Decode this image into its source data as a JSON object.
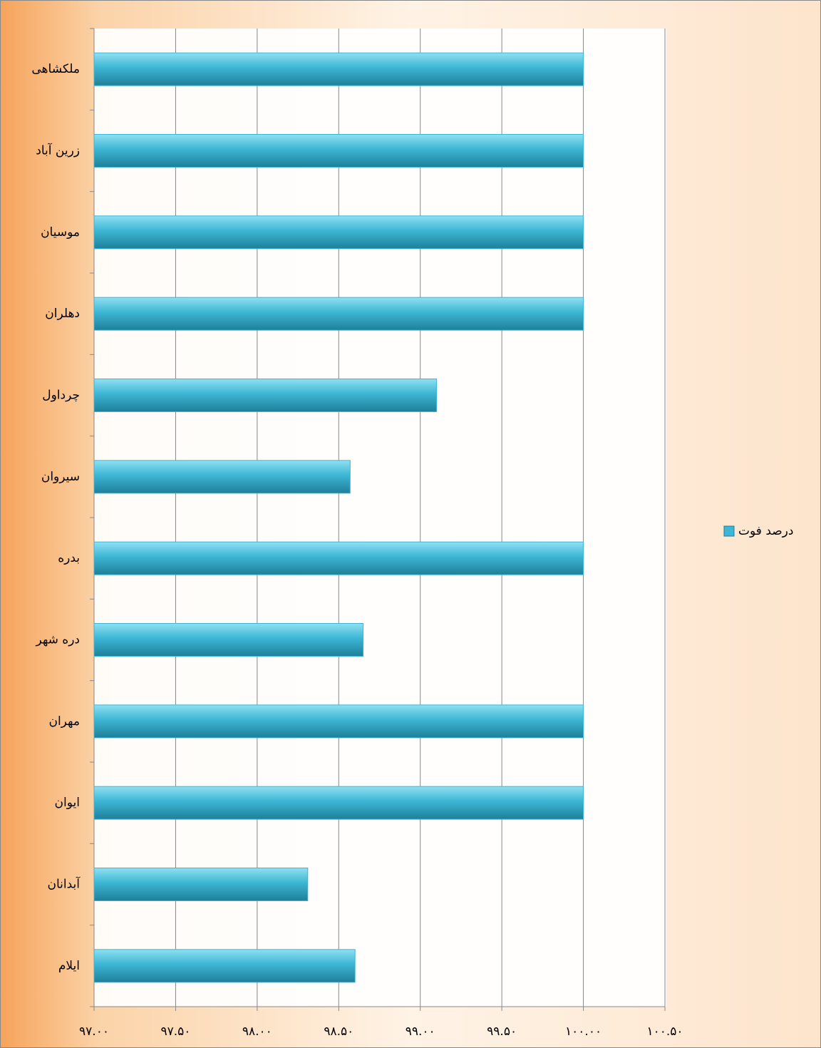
{
  "chart_data": {
    "type": "bar",
    "orientation": "horizontal",
    "categories": [
      "ملکشاهی",
      "زرین آباد",
      "موسیان",
      "دهلران",
      "چرداول",
      "سیروان",
      "بدره",
      "دره شهر",
      "مهران",
      "ایوان",
      "آبدانان",
      "ایلام"
    ],
    "series": [
      {
        "name": "درصد فوت",
        "color": "#3cb6d4",
        "values": [
          100,
          100,
          100,
          100,
          99.1,
          98.57,
          100,
          98.65,
          100,
          100,
          98.31,
          98.6
        ]
      }
    ],
    "xlim": [
      97,
      100.5
    ],
    "xticks": [
      {
        "value": 97,
        "label": "۹۷.۰۰"
      },
      {
        "value": 97.5,
        "label": "۹۷.۵۰"
      },
      {
        "value": 98,
        "label": "۹۸.۰۰"
      },
      {
        "value": 98.5,
        "label": "۹۸.۵۰"
      },
      {
        "value": 99,
        "label": "۹۹.۰۰"
      },
      {
        "value": 99.5,
        "label": "۹۹.۵۰"
      },
      {
        "value": 100,
        "label": "۱۰۰.۰۰"
      },
      {
        "value": 100.5,
        "label": "۱۰۰.۵۰"
      }
    ],
    "grid": true,
    "legend": "right"
  }
}
